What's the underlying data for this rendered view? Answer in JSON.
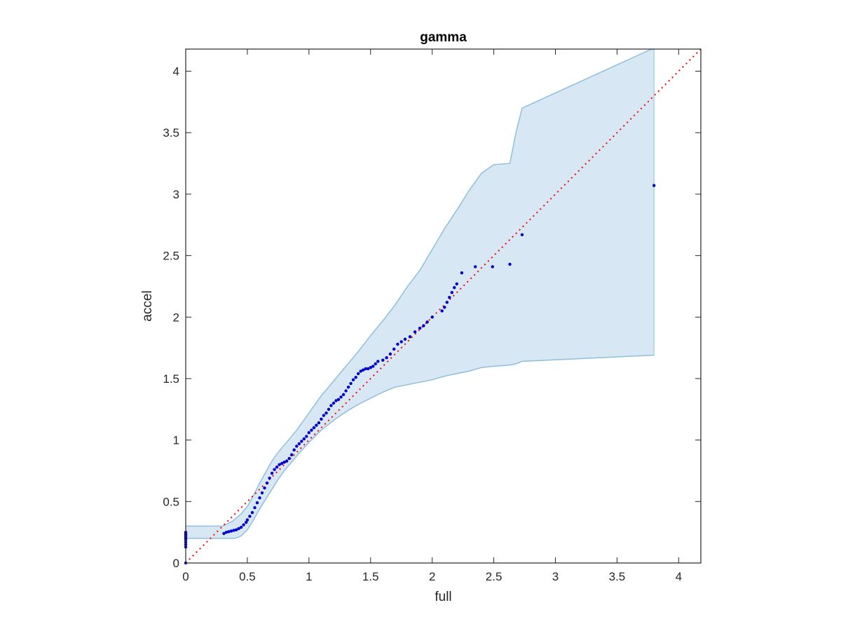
{
  "chart_data": {
    "type": "scatter",
    "title": "gamma",
    "xlabel": "full",
    "ylabel": "accel",
    "xlim": [
      0,
      4.18
    ],
    "ylim": [
      0,
      4.18
    ],
    "xticks": [
      "0",
      "0.5",
      "1",
      "1.5",
      "2",
      "2.5",
      "3",
      "3.5",
      "4"
    ],
    "yticks": [
      "0",
      "0.5",
      "1",
      "1.5",
      "2",
      "2.5",
      "3",
      "3.5",
      "4"
    ],
    "grid": false,
    "legend": "none",
    "reference_line": {
      "x": [
        0,
        4.18
      ],
      "y": [
        0,
        4.18
      ],
      "style": "dotted",
      "color": "#ff0000"
    },
    "band": {
      "color": "#d7e7f3",
      "edge_color": "#8fbfdc",
      "upper": {
        "x": [
          0,
          0.3,
          0.38,
          0.45,
          0.5,
          0.55,
          0.6,
          0.65,
          0.7,
          0.75,
          0.8,
          0.9,
          1.0,
          1.1,
          1.2,
          1.3,
          1.4,
          1.5,
          1.6,
          1.7,
          1.8,
          1.9,
          2.0,
          2.1,
          2.2,
          2.3,
          2.4,
          2.5,
          2.63,
          2.68,
          2.73,
          3.78,
          3.8
        ],
        "y": [
          0.3,
          0.3,
          0.34,
          0.4,
          0.46,
          0.55,
          0.65,
          0.74,
          0.83,
          0.9,
          0.96,
          1.08,
          1.22,
          1.36,
          1.48,
          1.6,
          1.72,
          1.85,
          1.97,
          2.1,
          2.25,
          2.38,
          2.55,
          2.72,
          2.87,
          3.03,
          3.17,
          3.24,
          3.25,
          3.5,
          3.7,
          4.18,
          4.18
        ]
      },
      "lower": {
        "x": [
          0,
          0.3,
          0.4,
          0.45,
          0.5,
          0.55,
          0.6,
          0.65,
          0.7,
          0.75,
          0.8,
          0.9,
          1.0,
          1.1,
          1.2,
          1.3,
          1.4,
          1.5,
          1.6,
          1.7,
          1.8,
          1.9,
          2.0,
          2.1,
          2.2,
          2.3,
          2.4,
          2.5,
          2.63,
          2.68,
          2.73,
          3.8
        ],
        "y": [
          0.2,
          0.2,
          0.2,
          0.22,
          0.27,
          0.35,
          0.44,
          0.52,
          0.6,
          0.68,
          0.75,
          0.87,
          0.98,
          1.08,
          1.16,
          1.23,
          1.29,
          1.34,
          1.39,
          1.43,
          1.45,
          1.47,
          1.49,
          1.52,
          1.54,
          1.56,
          1.59,
          1.6,
          1.61,
          1.62,
          1.64,
          1.69
        ]
      }
    },
    "series": [
      {
        "color": "#0000cc",
        "x": [
          0,
          0,
          0,
          0,
          0,
          0,
          0,
          0,
          0,
          0,
          0,
          0.31,
          0.33,
          0.35,
          0.37,
          0.39,
          0.41,
          0.43,
          0.45,
          0.47,
          0.49,
          0.5,
          0.52,
          0.54,
          0.56,
          0.58,
          0.6,
          0.62,
          0.64,
          0.66,
          0.68,
          0.7,
          0.72,
          0.74,
          0.76,
          0.78,
          0.8,
          0.82,
          0.84,
          0.86,
          0.88,
          0.9,
          0.92,
          0.94,
          0.96,
          0.98,
          1.0,
          1.02,
          1.04,
          1.06,
          1.08,
          1.1,
          1.12,
          1.14,
          1.16,
          1.18,
          1.2,
          1.22,
          1.24,
          1.26,
          1.28,
          1.3,
          1.32,
          1.34,
          1.36,
          1.38,
          1.4,
          1.42,
          1.44,
          1.46,
          1.48,
          1.5,
          1.52,
          1.54,
          1.56,
          1.6,
          1.63,
          1.66,
          1.69,
          1.72,
          1.75,
          1.78,
          1.82,
          1.86,
          1.9,
          1.93,
          1.96,
          2.0,
          2.08,
          2.1,
          2.12,
          2.14,
          2.16,
          2.18,
          2.2,
          2.24,
          2.35,
          2.49,
          2.63,
          2.73,
          3.8
        ],
        "y": [
          0,
          0.13,
          0.15,
          0.17,
          0.19,
          0.2,
          0.21,
          0.22,
          0.23,
          0.24,
          0.25,
          0.24,
          0.25,
          0.255,
          0.26,
          0.265,
          0.27,
          0.28,
          0.29,
          0.31,
          0.33,
          0.35,
          0.38,
          0.41,
          0.45,
          0.49,
          0.53,
          0.57,
          0.61,
          0.65,
          0.69,
          0.73,
          0.76,
          0.78,
          0.8,
          0.81,
          0.82,
          0.83,
          0.85,
          0.88,
          0.92,
          0.95,
          0.97,
          0.99,
          1.01,
          1.03,
          1.06,
          1.08,
          1.1,
          1.12,
          1.14,
          1.17,
          1.2,
          1.22,
          1.25,
          1.28,
          1.3,
          1.32,
          1.33,
          1.35,
          1.37,
          1.4,
          1.43,
          1.46,
          1.49,
          1.51,
          1.54,
          1.56,
          1.57,
          1.58,
          1.58,
          1.59,
          1.6,
          1.62,
          1.64,
          1.65,
          1.67,
          1.7,
          1.74,
          1.78,
          1.8,
          1.82,
          1.84,
          1.88,
          1.91,
          1.93,
          1.96,
          2.0,
          2.05,
          2.08,
          2.12,
          2.16,
          2.2,
          2.24,
          2.27,
          2.36,
          2.41,
          2.41,
          2.43,
          2.67,
          3.07
        ]
      }
    ]
  }
}
